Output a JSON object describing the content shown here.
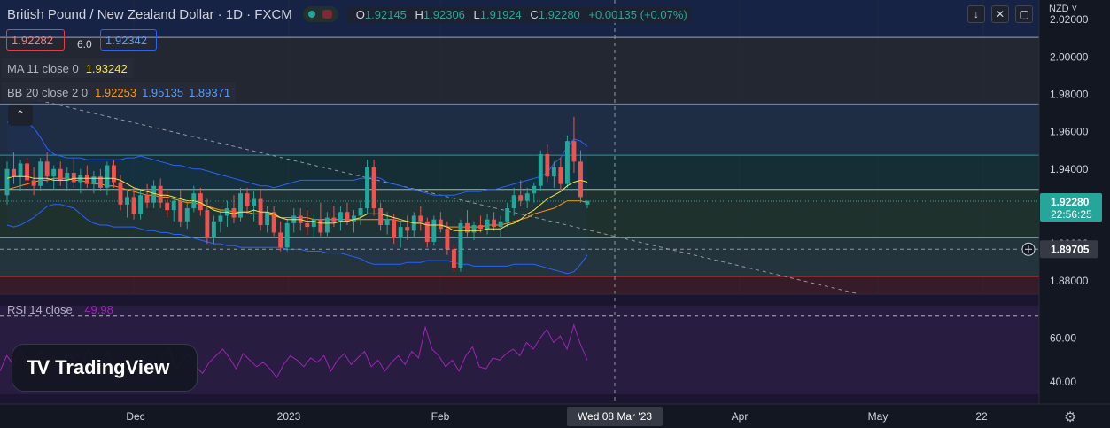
{
  "header": {
    "title": "British Pound / New Zealand Dollar · 1D · FXCM",
    "open_label": "O",
    "open": "1.92145",
    "high_label": "H",
    "high": "1.92306",
    "low_label": "L",
    "low": "1.91924",
    "close_label": "C",
    "close": "1.92280",
    "change": "+0.00135 (+0.07%)",
    "currency": "NZD"
  },
  "quote": {
    "sell": "1.92282",
    "spread": "6.0",
    "buy": "1.92342"
  },
  "indicators": {
    "ma": {
      "name": "MA 11 close 0",
      "value": "1.93242"
    },
    "bb": {
      "name": "BB 20 close 2 0",
      "basis": "1.92253",
      "upper": "1.95135",
      "lower": "1.89371"
    },
    "rsi": {
      "name": "RSI 14 close",
      "value": "49.98"
    }
  },
  "logo_text": "TradingView",
  "icons": {
    "collapse": "chevron-up-icon",
    "download": "download-icon",
    "fullscreen": "fullscreen-icon",
    "screenshot": "screenshot-icon",
    "settings": "gear-icon",
    "add": "plus-circle-icon"
  },
  "colors": {
    "up": "#26a69a",
    "down": "#ef5350",
    "ma": "#f5e642",
    "bb_basis": "#ff9800",
    "bb_band": "#2962ff",
    "rsi": "#9c27b0",
    "last_price_bg": "#26a69a"
  },
  "chart_data": {
    "type": "candlestick",
    "title": "British Pound / New Zealand Dollar · 1D · FXCM",
    "x_axis_labels": [
      "Dec",
      "2023",
      "Feb",
      "Mar",
      "Apr",
      "May",
      "22"
    ],
    "y_axis_ticks": [
      "2.02000",
      "2.00000",
      "1.98000",
      "1.96000",
      "1.94000",
      "1.92000",
      "1.90000",
      "1.88000"
    ],
    "ylim": [
      1.873,
      2.0305
    ],
    "last_price": "1.92280",
    "countdown": "22:56:25",
    "crosshair_price": "1.89705",
    "crosshair_date": "Wed 08 Mar '23",
    "horizontal_levels": [
      2.0105,
      1.9748,
      1.9474,
      1.9291,
      1.9033,
      1.8825
    ],
    "zones": [
      {
        "from": 2.0105,
        "to": 2.04,
        "color": "#2962ff"
      },
      {
        "from": 1.9748,
        "to": 2.0105,
        "color": "#787b86"
      },
      {
        "from": 1.9474,
        "to": 1.9748,
        "color": "#5b9cf6"
      },
      {
        "from": 1.9291,
        "to": 1.9474,
        "color": "#26a69a"
      },
      {
        "from": 1.9033,
        "to": 1.9291,
        "color": "#66bb6a"
      },
      {
        "from": 1.8825,
        "to": 1.9033,
        "color": "#80cbc4"
      },
      {
        "from": 1.8725,
        "to": 1.8825,
        "color": "#f23645"
      }
    ],
    "candles": [
      [
        1.926,
        1.944,
        1.921,
        1.94
      ],
      [
        1.94,
        1.949,
        1.932,
        1.936
      ],
      [
        1.936,
        1.945,
        1.928,
        1.943
      ],
      [
        1.943,
        1.946,
        1.93,
        1.934
      ],
      [
        1.934,
        1.941,
        1.926,
        1.931
      ],
      [
        1.931,
        1.946,
        1.928,
        1.944
      ],
      [
        1.944,
        1.949,
        1.933,
        1.936
      ],
      [
        1.936,
        1.942,
        1.929,
        1.94
      ],
      [
        1.94,
        1.944,
        1.931,
        1.934
      ],
      [
        1.934,
        1.941,
        1.928,
        1.938
      ],
      [
        1.938,
        1.946,
        1.93,
        1.933
      ],
      [
        1.933,
        1.94,
        1.927,
        1.937
      ],
      [
        1.937,
        1.942,
        1.93,
        1.932
      ],
      [
        1.932,
        1.939,
        1.927,
        1.936
      ],
      [
        1.936,
        1.94,
        1.928,
        1.93
      ],
      [
        1.93,
        1.944,
        1.926,
        1.942
      ],
      [
        1.942,
        1.945,
        1.93,
        1.933
      ],
      [
        1.933,
        1.937,
        1.918,
        1.921
      ],
      [
        1.921,
        1.928,
        1.914,
        1.925
      ],
      [
        1.925,
        1.93,
        1.913,
        1.916
      ],
      [
        1.916,
        1.929,
        1.913,
        1.926
      ],
      [
        1.926,
        1.932,
        1.919,
        1.922
      ],
      [
        1.922,
        1.934,
        1.919,
        1.931
      ],
      [
        1.931,
        1.935,
        1.919,
        1.922
      ],
      [
        1.922,
        1.928,
        1.914,
        1.918
      ],
      [
        1.918,
        1.925,
        1.912,
        1.923
      ],
      [
        1.923,
        1.929,
        1.909,
        1.912
      ],
      [
        1.912,
        1.922,
        1.908,
        1.919
      ],
      [
        1.919,
        1.931,
        1.917,
        1.927
      ],
      [
        1.927,
        1.93,
        1.915,
        1.918
      ],
      [
        1.918,
        1.924,
        1.9,
        1.903
      ],
      [
        1.903,
        1.915,
        1.9,
        1.912
      ],
      [
        1.912,
        1.918,
        1.906,
        1.915
      ],
      [
        1.915,
        1.923,
        1.909,
        1.919
      ],
      [
        1.919,
        1.926,
        1.911,
        1.914
      ],
      [
        1.914,
        1.93,
        1.912,
        1.927
      ],
      [
        1.927,
        1.93,
        1.916,
        1.92
      ],
      [
        1.92,
        1.928,
        1.912,
        1.924
      ],
      [
        1.924,
        1.929,
        1.907,
        1.91
      ],
      [
        1.91,
        1.92,
        1.906,
        1.917
      ],
      [
        1.917,
        1.92,
        1.904,
        1.906
      ],
      [
        1.906,
        1.912,
        1.896,
        1.898
      ],
      [
        1.898,
        1.913,
        1.896,
        1.911
      ],
      [
        1.911,
        1.919,
        1.906,
        1.915
      ],
      [
        1.915,
        1.919,
        1.907,
        1.911
      ],
      [
        1.911,
        1.918,
        1.905,
        1.909
      ],
      [
        1.909,
        1.916,
        1.904,
        1.913
      ],
      [
        1.913,
        1.922,
        1.904,
        1.906
      ],
      [
        1.906,
        1.917,
        1.904,
        1.914
      ],
      [
        1.914,
        1.92,
        1.909,
        1.912
      ],
      [
        1.912,
        1.92,
        1.907,
        1.917
      ],
      [
        1.917,
        1.922,
        1.91,
        1.912
      ],
      [
        1.912,
        1.918,
        1.906,
        1.915
      ],
      [
        1.915,
        1.923,
        1.91,
        1.919
      ],
      [
        1.919,
        1.945,
        1.916,
        1.941
      ],
      [
        1.941,
        1.945,
        1.915,
        1.919
      ],
      [
        1.919,
        1.922,
        1.907,
        1.91
      ],
      [
        1.91,
        1.917,
        1.905,
        1.913
      ],
      [
        1.913,
        1.916,
        1.9,
        1.903
      ],
      [
        1.903,
        1.912,
        1.898,
        1.909
      ],
      [
        1.909,
        1.915,
        1.902,
        1.907
      ],
      [
        1.907,
        1.917,
        1.903,
        1.915
      ],
      [
        1.915,
        1.92,
        1.907,
        1.912
      ],
      [
        1.912,
        1.914,
        1.898,
        1.901
      ],
      [
        1.901,
        1.915,
        1.899,
        1.913
      ],
      [
        1.913,
        1.917,
        1.906,
        1.908
      ],
      [
        1.908,
        1.912,
        1.894,
        1.897
      ],
      [
        1.897,
        1.9,
        1.885,
        1.887
      ],
      [
        1.887,
        1.913,
        1.885,
        1.911
      ],
      [
        1.911,
        1.918,
        1.904,
        1.906
      ],
      [
        1.906,
        1.912,
        1.902,
        1.91
      ],
      [
        1.91,
        1.915,
        1.906,
        1.908
      ],
      [
        1.908,
        1.916,
        1.905,
        1.913
      ],
      [
        1.913,
        1.917,
        1.907,
        1.909
      ],
      [
        1.909,
        1.915,
        1.903,
        1.912
      ],
      [
        1.912,
        1.922,
        1.909,
        1.919
      ],
      [
        1.919,
        1.93,
        1.915,
        1.926
      ],
      [
        1.926,
        1.934,
        1.92,
        1.923
      ],
      [
        1.923,
        1.93,
        1.919,
        1.927
      ],
      [
        1.927,
        1.933,
        1.922,
        1.931
      ],
      [
        1.931,
        1.95,
        1.928,
        1.948
      ],
      [
        1.948,
        1.953,
        1.933,
        1.936
      ],
      [
        1.936,
        1.944,
        1.93,
        1.941
      ],
      [
        1.941,
        1.946,
        1.929,
        1.932
      ],
      [
        1.932,
        1.958,
        1.93,
        1.955
      ],
      [
        1.955,
        1.968,
        1.938,
        1.944
      ],
      [
        1.944,
        1.95,
        1.922,
        1.925
      ],
      [
        1.921,
        1.923,
        1.919,
        1.923
      ]
    ],
    "ma": [
      1.935,
      1.936,
      1.936,
      1.936,
      1.935,
      1.935,
      1.935,
      1.934,
      1.934,
      1.934,
      1.935,
      1.935,
      1.935,
      1.935,
      1.935,
      1.935,
      1.935,
      1.934,
      1.932,
      1.93,
      1.929,
      1.928,
      1.927,
      1.926,
      1.926,
      1.925,
      1.924,
      1.923,
      1.923,
      1.922,
      1.92,
      1.918,
      1.917,
      1.917,
      1.916,
      1.917,
      1.917,
      1.918,
      1.917,
      1.917,
      1.916,
      1.914,
      1.913,
      1.913,
      1.913,
      1.912,
      1.912,
      1.911,
      1.911,
      1.911,
      1.912,
      1.912,
      1.913,
      1.914,
      1.916,
      1.916,
      1.916,
      1.915,
      1.914,
      1.913,
      1.912,
      1.911,
      1.911,
      1.91,
      1.91,
      1.91,
      1.909,
      1.907,
      1.907,
      1.907,
      1.907,
      1.907,
      1.908,
      1.908,
      1.908,
      1.91,
      1.911,
      1.913,
      1.916,
      1.918,
      1.921,
      1.924,
      1.926,
      1.928,
      1.931,
      1.933,
      1.934,
      1.933
    ],
    "bb_basis": [
      1.929,
      1.93,
      1.931,
      1.932,
      1.933,
      1.934,
      1.934,
      1.935,
      1.935,
      1.935,
      1.934,
      1.934,
      1.933,
      1.932,
      1.932,
      1.931,
      1.931,
      1.93,
      1.929,
      1.928,
      1.927,
      1.926,
      1.926,
      1.925,
      1.925,
      1.924,
      1.923,
      1.922,
      1.922,
      1.921,
      1.92,
      1.919,
      1.918,
      1.918,
      1.917,
      1.917,
      1.917,
      1.916,
      1.916,
      1.916,
      1.915,
      1.914,
      1.914,
      1.914,
      1.914,
      1.914,
      1.913,
      1.913,
      1.913,
      1.913,
      1.913,
      1.913,
      1.913,
      1.913,
      1.913,
      1.913,
      1.913,
      1.913,
      1.913,
      1.912,
      1.912,
      1.911,
      1.911,
      1.91,
      1.91,
      1.91,
      1.909,
      1.909,
      1.909,
      1.909,
      1.909,
      1.909,
      1.91,
      1.91,
      1.91,
      1.911,
      1.912,
      1.913,
      1.914,
      1.916,
      1.917,
      1.918,
      1.919,
      1.921,
      1.923,
      1.923,
      1.923,
      1.922
    ],
    "bb_upper": [
      1.965,
      1.966,
      1.966,
      1.965,
      1.962,
      1.957,
      1.951,
      1.948,
      1.947,
      1.946,
      1.946,
      1.946,
      1.945,
      1.945,
      1.945,
      1.945,
      1.945,
      1.945,
      1.946,
      1.946,
      1.947,
      1.946,
      1.945,
      1.944,
      1.943,
      1.942,
      1.942,
      1.941,
      1.94,
      1.94,
      1.939,
      1.938,
      1.937,
      1.936,
      1.935,
      1.934,
      1.933,
      1.932,
      1.931,
      1.931,
      1.93,
      1.931,
      1.932,
      1.933,
      1.934,
      1.934,
      1.934,
      1.934,
      1.934,
      1.934,
      1.934,
      1.934,
      1.934,
      1.935,
      1.935,
      1.936,
      1.935,
      1.933,
      1.932,
      1.931,
      1.93,
      1.929,
      1.928,
      1.927,
      1.926,
      1.926,
      1.926,
      1.926,
      1.927,
      1.928,
      1.928,
      1.928,
      1.929,
      1.929,
      1.93,
      1.931,
      1.932,
      1.933,
      1.934,
      1.935,
      1.936,
      1.938,
      1.943,
      1.946,
      1.952,
      1.956,
      1.955,
      1.952
    ],
    "bb_lower": [
      1.91,
      1.909,
      1.91,
      1.912,
      1.914,
      1.917,
      1.92,
      1.921,
      1.921,
      1.92,
      1.919,
      1.916,
      1.913,
      1.911,
      1.91,
      1.91,
      1.909,
      1.909,
      1.909,
      1.909,
      1.908,
      1.907,
      1.907,
      1.906,
      1.906,
      1.905,
      1.905,
      1.904,
      1.903,
      1.902,
      1.901,
      1.9,
      1.9,
      1.899,
      1.899,
      1.898,
      1.898,
      1.898,
      1.898,
      1.898,
      1.898,
      1.898,
      1.897,
      1.897,
      1.897,
      1.896,
      1.896,
      1.896,
      1.895,
      1.895,
      1.895,
      1.894,
      1.893,
      1.892,
      1.89,
      1.889,
      1.889,
      1.889,
      1.889,
      1.889,
      1.89,
      1.89,
      1.89,
      1.891,
      1.891,
      1.891,
      1.891,
      1.89,
      1.889,
      1.889,
      1.888,
      1.888,
      1.888,
      1.888,
      1.888,
      1.888,
      1.889,
      1.889,
      1.889,
      1.889,
      1.888,
      1.887,
      1.886,
      1.885,
      1.884,
      1.885,
      1.889,
      1.894
    ],
    "rsi": {
      "ylim": [
        30,
        80
      ],
      "ticks": [
        "60.00",
        "40.00"
      ],
      "levels": [
        70,
        30
      ],
      "values": [
        45,
        52,
        48,
        55,
        47,
        50,
        54,
        49,
        52,
        47,
        53,
        50,
        46,
        55,
        51,
        49,
        54,
        46,
        44,
        50,
        47,
        52,
        48,
        45,
        51,
        56,
        46,
        50,
        53,
        47,
        44,
        49,
        52,
        55,
        51,
        46,
        53,
        50,
        47,
        49,
        46,
        42,
        48,
        52,
        50,
        47,
        51,
        49,
        52,
        45,
        50,
        53,
        48,
        51,
        54,
        47,
        50,
        45,
        49,
        52,
        48,
        54,
        51,
        65,
        55,
        52,
        47,
        50,
        45,
        52,
        56,
        47,
        46,
        51,
        50,
        53,
        55,
        52,
        58,
        55,
        60,
        64,
        58,
        61,
        55,
        66,
        57,
        50
      ]
    }
  }
}
